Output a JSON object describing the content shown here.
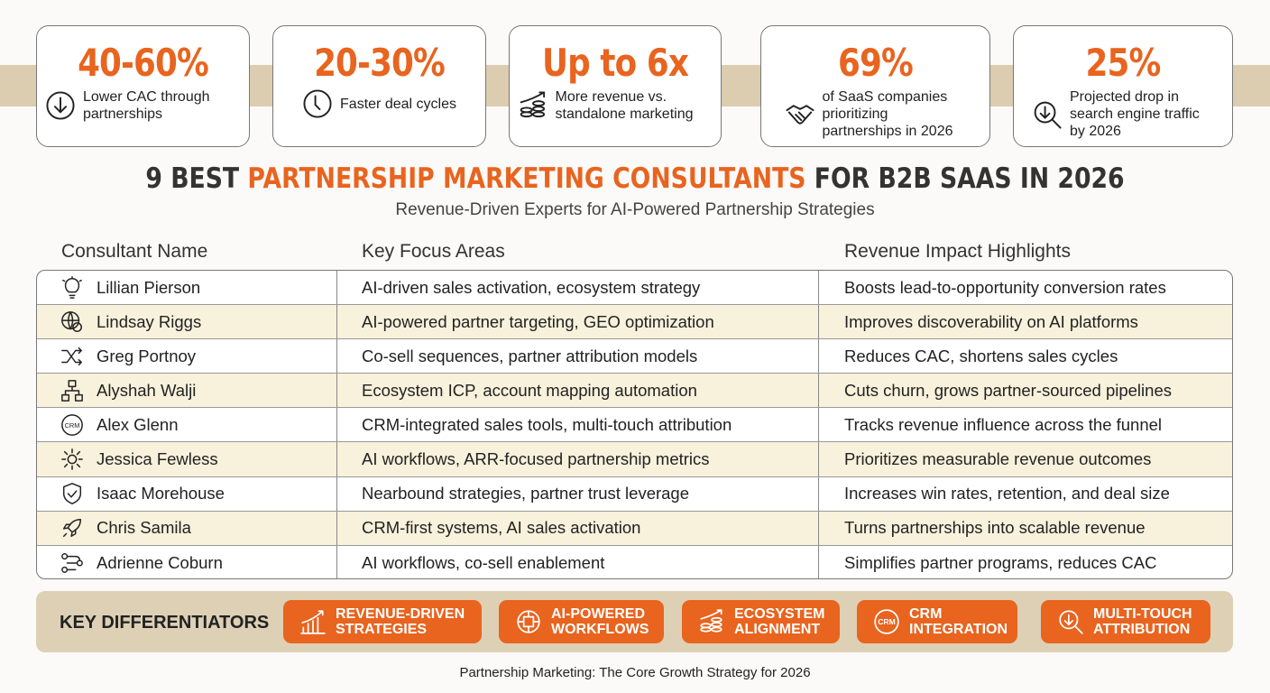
{
  "stats": [
    {
      "value": "40-60%",
      "label": "Lower CAC through partnerships",
      "icon": "arrow-down-circle-icon"
    },
    {
      "value": "20-30%",
      "label": "Faster deal cycles",
      "icon": "clock-icon"
    },
    {
      "value": "Up to 6x",
      "label": "More revenue vs. standalone marketing",
      "icon": "coins-growth-icon"
    },
    {
      "value": "69%",
      "label": "of SaaS companies prioritizing partnerships in 2026",
      "icon": "handshake-icon"
    },
    {
      "value": "25%",
      "label": "Projected drop in search engine traffic by 2026",
      "icon": "search-down-icon"
    }
  ],
  "title": {
    "pre": "9 BEST ",
    "highlight": "PARTNERSHIP MARKETING CONSULTANTS",
    "post": " FOR B2B SAAS IN 2026"
  },
  "subtitle": "Revenue-Driven Experts for AI-Powered Partnership Strategies",
  "table": {
    "headers": [
      "Consultant Name",
      "Key Focus Areas",
      "Revenue Impact Highlights"
    ],
    "rows": [
      {
        "name": "Lillian Pierson",
        "focus": "AI-driven sales activation, ecosystem strategy",
        "impact": "Boosts lead-to-opportunity conversion rates",
        "icon": "lightbulb-icon"
      },
      {
        "name": "Lindsay Riggs",
        "focus": "AI-powered partner targeting, GEO optimization",
        "impact": "Improves discoverability on AI platforms",
        "icon": "globe-icon"
      },
      {
        "name": "Greg Portnoy",
        "focus": "Co-sell sequences, partner attribution models",
        "impact": "Reduces CAC, shortens sales cycles",
        "icon": "shuffle-icon"
      },
      {
        "name": "Alyshah Walji",
        "focus": "Ecosystem ICP, account mapping automation",
        "impact": "Cuts churn, grows partner-sourced pipelines",
        "icon": "hierarchy-icon"
      },
      {
        "name": "Alex Glenn",
        "focus": "CRM-integrated sales tools, multi-touch attribution",
        "impact": "Tracks revenue influence across the funnel",
        "icon": "crm-icon"
      },
      {
        "name": "Jessica Fewless",
        "focus": "AI workflows, ARR-focused partnership metrics",
        "impact": "Prioritizes measurable revenue outcomes",
        "icon": "gear-icon"
      },
      {
        "name": "Isaac Morehouse",
        "focus": "Nearbound strategies, partner trust leverage",
        "impact": "Increases win rates, retention, and deal size",
        "icon": "shield-icon"
      },
      {
        "name": "Chris Samila",
        "focus": "CRM-first systems, AI sales activation",
        "impact": "Turns partnerships into scalable revenue",
        "icon": "rocket-icon"
      },
      {
        "name": "Adrienne Coburn",
        "focus": "AI workflows, co-sell enablement",
        "impact": "Simplifies partner programs, reduces CAC",
        "icon": "workflow-icon"
      }
    ]
  },
  "differentiators": {
    "label": "KEY DIFFERENTIATORS",
    "items": [
      {
        "l1": "REVENUE-DRIVEN",
        "l2": "STRATEGIES",
        "icon": "bar-chart-growth-icon"
      },
      {
        "l1": "AI-POWERED",
        "l2": "WORKFLOWS",
        "icon": "ai-brain-icon"
      },
      {
        "l1": "ECOSYSTEM",
        "l2": "ALIGNMENT",
        "icon": "coins-growth-icon"
      },
      {
        "l1": "CRM",
        "l2": "INTEGRATION",
        "icon": "crm-icon"
      },
      {
        "l1": "MULTI-TOUCH",
        "l2": "ATTRIBUTION",
        "icon": "search-down-icon"
      }
    ]
  },
  "footer": "Partnership Marketing: The Core Growth Strategy for 2026",
  "colors": {
    "accent": "#e8641f",
    "band": "#dccdb0",
    "alt_row": "#f8f1dc"
  }
}
